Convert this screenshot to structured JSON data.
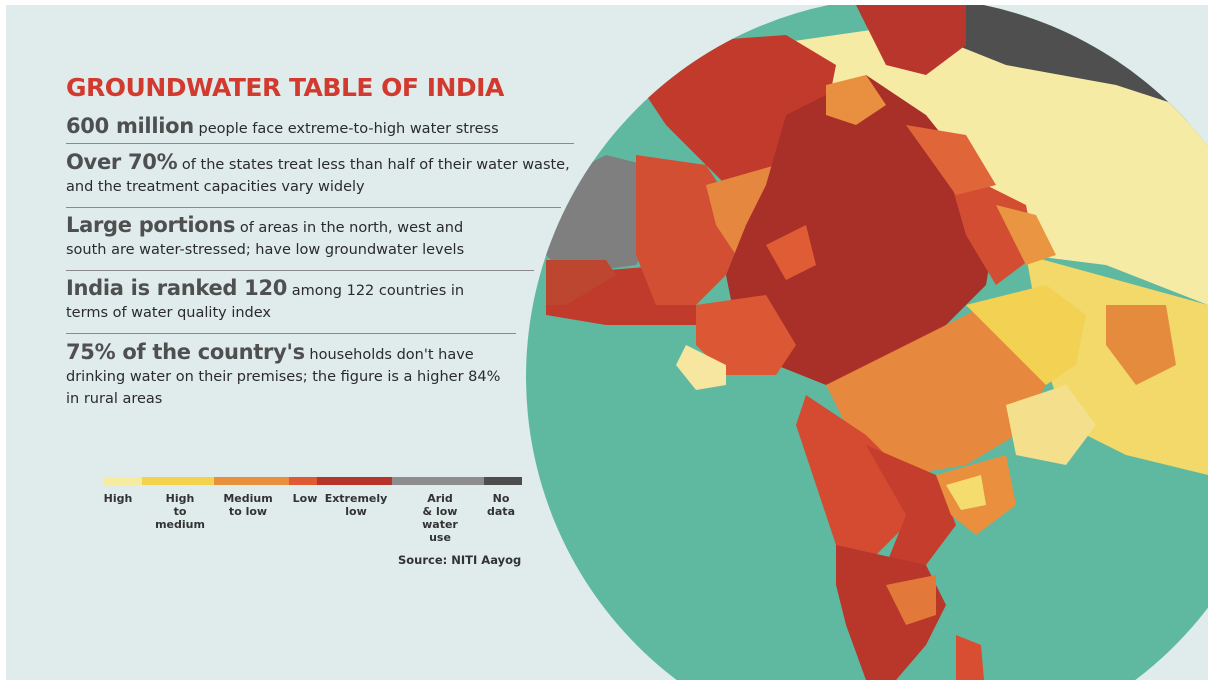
{
  "title": "GROUNDWATER TABLE OF INDIA",
  "facts": [
    {
      "highlight": "600 million",
      "text": " people face extreme-to-high water stress"
    },
    {
      "highlight": "Over 70%",
      "text": " of the states treat less than half of their water waste, and the treatment capacities vary widely"
    },
    {
      "highlight": "Large portions",
      "text": " of areas in the north, west and south are water-stressed; have low groundwater levels"
    },
    {
      "highlight": "India is ranked 120",
      "text": " among 122 countries in terms of water quality index"
    },
    {
      "highlight": "75% of the country's",
      "text": " households don't have drinking water on their premises; the figure is a higher 84% in rural areas"
    }
  ],
  "legend": [
    {
      "label": "High",
      "color": "#f7eba0"
    },
    {
      "label": "High\nto\nmedium",
      "color": "#f3d24e"
    },
    {
      "label": "Medium\nto low",
      "color": "#e9903a"
    },
    {
      "label": "Low",
      "color": "#df5a32"
    },
    {
      "label": "Extremely\nlow",
      "color": "#b5352a"
    },
    {
      "label": "Arid & low\nwater use",
      "color": "#8d8d8d"
    },
    {
      "label": "No\ndata",
      "color": "#4d4d4d"
    }
  ],
  "source": "Source: NITI Aayog",
  "colors": {
    "ocean": "#5fb9a0",
    "background": "#dfeceb",
    "title": "#d33a2f"
  }
}
